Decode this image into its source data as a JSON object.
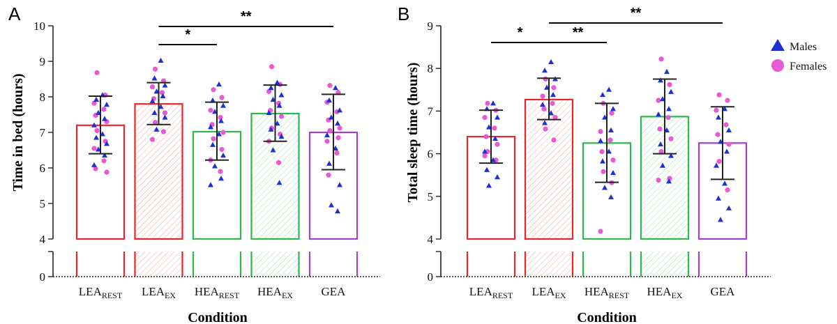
{
  "chart_data": [
    {
      "panel_label": "A",
      "type": "bar",
      "ylabel": "Time in bed  (hours)",
      "xlabel": "Condition",
      "ylim": [
        4,
        10
      ],
      "axis_break": true,
      "yticks_main": [
        4,
        5,
        6,
        7,
        8,
        9,
        10
      ],
      "ytick_lower": 0,
      "categories": [
        {
          "main": "LEA",
          "sub": "REST",
          "color": "#e8262c",
          "hatched": false
        },
        {
          "main": "LEA",
          "sub": "EX",
          "color": "#e8262c",
          "hatched": true
        },
        {
          "main": "HEA",
          "sub": "REST",
          "color": "#2db84a",
          "hatched": false
        },
        {
          "main": "HEA",
          "sub": "EX",
          "color": "#2db84a",
          "hatched": true
        },
        {
          "main": "GEA",
          "sub": "",
          "color": "#a43ed0",
          "hatched": false
        }
      ],
      "means": [
        7.2,
        7.8,
        7.02,
        7.53,
        7.0
      ],
      "sd_lower": [
        6.4,
        7.22,
        6.22,
        6.75,
        5.95
      ],
      "sd_upper": [
        8.02,
        8.4,
        7.85,
        8.33,
        8.07
      ],
      "males": [
        [
          8.05,
          7.92,
          7.78,
          7.55,
          7.38,
          7.2,
          6.95,
          6.85,
          6.68,
          6.52,
          6.35,
          6.08
        ],
        [
          9.02,
          8.52,
          8.32,
          8.15,
          8.02,
          7.88,
          7.72,
          7.55,
          7.42,
          7.08
        ],
        [
          8.35,
          7.9,
          7.75,
          7.58,
          7.32,
          7.15,
          6.95,
          6.65,
          6.35,
          6.05,
          5.7,
          5.52
        ],
        [
          8.4,
          8.25,
          8.05,
          7.92,
          7.75,
          7.55,
          7.25,
          7.08,
          6.88,
          6.5,
          5.58
        ],
        [
          8.25,
          7.9,
          7.62,
          7.42,
          7.25,
          6.92,
          6.55,
          6.12,
          5.52,
          4.95,
          4.78
        ]
      ],
      "females": [
        [
          8.68,
          8.05,
          7.82,
          7.65,
          7.48,
          7.3,
          7.05,
          6.75,
          6.55,
          6.2,
          5.98,
          5.88
        ],
        [
          8.78,
          8.45,
          8.28,
          8.12,
          7.95,
          7.55,
          7.28,
          7.02,
          6.8
        ],
        [
          8.2,
          7.98,
          7.62,
          7.42,
          7.22,
          7.0,
          6.82,
          6.52,
          6.22,
          5.9
        ],
        [
          8.85,
          8.35,
          8.15,
          7.82,
          7.62,
          7.45,
          7.12,
          6.95,
          6.75,
          6.15
        ],
        [
          8.32,
          8.12,
          7.85,
          7.58,
          7.35,
          7.12,
          7.05,
          6.85,
          6.75,
          6.42,
          5.8
        ]
      ],
      "significance": [
        {
          "from": 1,
          "to": 2,
          "label": "*"
        },
        {
          "from": 1,
          "to": 4,
          "label": "**"
        }
      ]
    },
    {
      "panel_label": "B",
      "type": "bar",
      "ylabel": "Total sleep time (hours)",
      "xlabel": "Condition",
      "ylim": [
        4,
        9
      ],
      "axis_break": true,
      "yticks_main": [
        4,
        5,
        6,
        7,
        8,
        9
      ],
      "ytick_lower": 0,
      "categories": [
        {
          "main": "LEA",
          "sub": "REST",
          "color": "#e8262c",
          "hatched": false
        },
        {
          "main": "LEA",
          "sub": "EX",
          "color": "#e8262c",
          "hatched": true
        },
        {
          "main": "HEA",
          "sub": "REST",
          "color": "#2db84a",
          "hatched": false
        },
        {
          "main": "HEA",
          "sub": "EX",
          "color": "#2db84a",
          "hatched": true
        },
        {
          "main": "GEA",
          "sub": "",
          "color": "#a43ed0",
          "hatched": false
        }
      ],
      "means": [
        6.4,
        7.27,
        6.25,
        6.87,
        6.25
      ],
      "sd_lower": [
        5.78,
        6.8,
        5.33,
        6.0,
        5.4
      ],
      "sd_upper": [
        7.02,
        7.77,
        7.18,
        7.75,
        7.1
      ],
      "males": [
        [
          7.18,
          7.05,
          6.85,
          6.62,
          6.35,
          6.05,
          5.85,
          5.62,
          5.45,
          5.25
        ],
        [
          8.15,
          7.95,
          7.75,
          7.55,
          7.38,
          7.15,
          6.95,
          6.72
        ],
        [
          7.5,
          7.38,
          7.05,
          6.85,
          6.55,
          6.3,
          6.05,
          5.82,
          5.55,
          5.2,
          4.98
        ],
        [
          7.92,
          7.72,
          7.45,
          7.28,
          7.05,
          6.92,
          6.55,
          6.22,
          5.95,
          5.72,
          5.35
        ],
        [
          7.05,
          6.85,
          6.55,
          6.28,
          6.05,
          5.72,
          5.3,
          4.95,
          4.72,
          4.45
        ]
      ],
      "females": [
        [
          7.18,
          7.02,
          6.85,
          6.6,
          6.4,
          6.22,
          6.05,
          5.85,
          5.95
        ],
        [
          7.75,
          7.55,
          7.35,
          7.18,
          7.05,
          6.85,
          6.58,
          6.32
        ],
        [
          7.18,
          6.95,
          6.52,
          6.32,
          6.05,
          5.85,
          5.58,
          5.32,
          4.18
        ],
        [
          8.22,
          7.62,
          7.25,
          6.85,
          6.58,
          6.35,
          6.05,
          5.42,
          5.38
        ],
        [
          7.38,
          7.25,
          7.02,
          6.68,
          6.45,
          6.22,
          5.82,
          5.15
        ]
      ],
      "significance": [
        {
          "from": 0,
          "to": 1,
          "label": "*"
        },
        {
          "from": 1,
          "to": 2,
          "label": "**"
        },
        {
          "from": 1,
          "to": 4,
          "label": "**"
        }
      ]
    }
  ],
  "legend": {
    "placement": "top-right",
    "items": [
      {
        "label": "Males",
        "marker": "triangle",
        "color": "#1f2fd6"
      },
      {
        "label": "Females",
        "marker": "circle",
        "color": "#e85ad2"
      }
    ]
  }
}
